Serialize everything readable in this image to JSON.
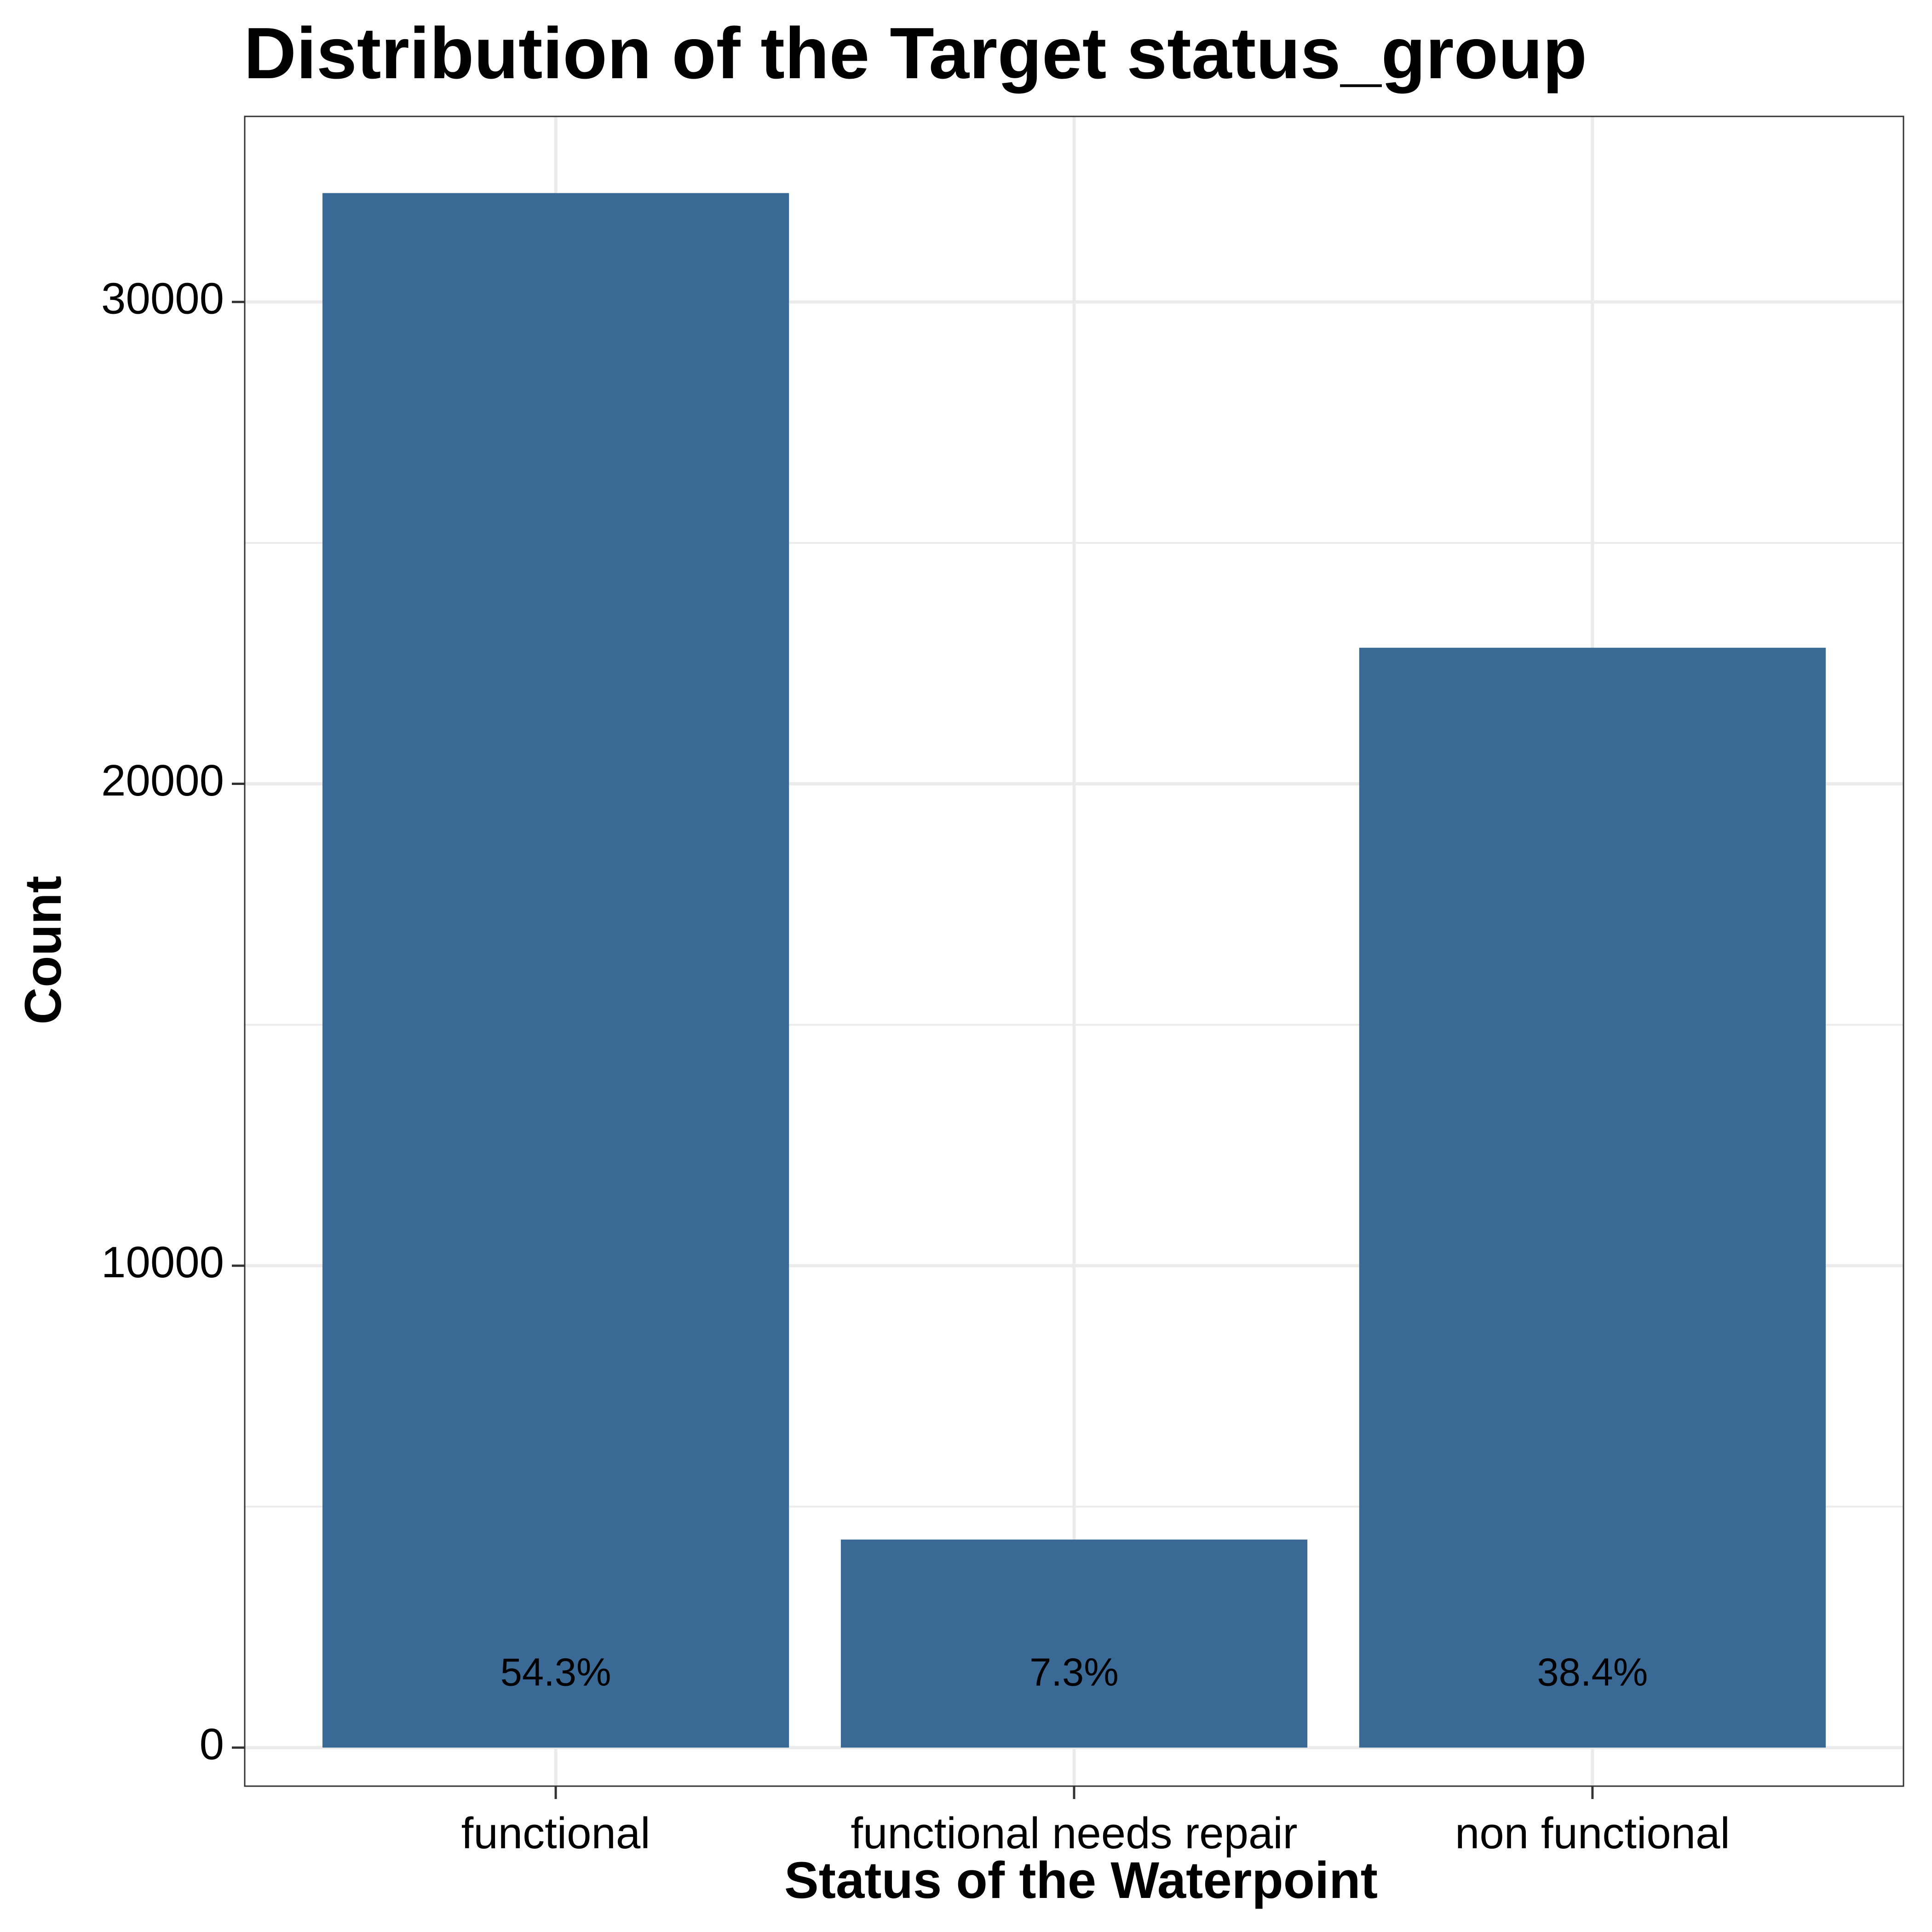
{
  "chart_data": {
    "type": "bar",
    "title": "Distribution of the Target status_group",
    "xlabel": "Status of the Waterpoint",
    "ylabel": "Count",
    "categories": [
      "functional",
      "functional needs repair",
      "non functional"
    ],
    "values": [
      32259,
      4317,
      22824
    ],
    "data_labels": [
      "54.3%",
      "7.3%",
      "38.4%"
    ],
    "ylim": [
      -800,
      33850
    ],
    "yticks": [
      0,
      10000,
      20000,
      30000
    ],
    "ytick_labels": [
      "0",
      "10000",
      "20000",
      "30000"
    ],
    "grid": true,
    "legend": "none",
    "colors": {
      "bar": "#3b6995",
      "grid": "#ebebeb",
      "border": "#333333",
      "text": "#000000",
      "background": "#ffffff"
    }
  }
}
